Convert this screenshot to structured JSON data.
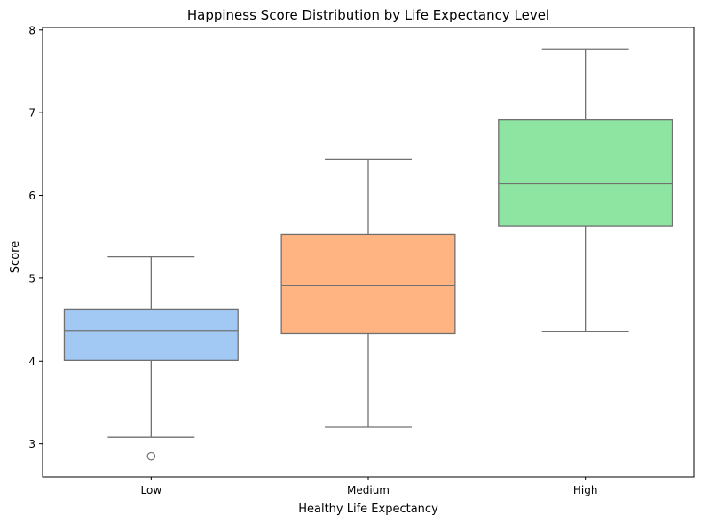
{
  "chart_data": {
    "type": "box",
    "title": "Happiness Score Distribution by Life Expectancy Level",
    "xlabel": "Healthy Life Expectancy",
    "ylabel": "Score",
    "ylim": [
      2.6,
      8.03
    ],
    "yticks": [
      3,
      4,
      5,
      6,
      7,
      8
    ],
    "grid": false,
    "categories": [
      "Low",
      "Medium",
      "High"
    ],
    "boxes": [
      {
        "category": "Low",
        "whisker_low": 3.08,
        "q1": 4.01,
        "median": 4.37,
        "q3": 4.62,
        "whisker_high": 5.26,
        "outliers": [
          2.85
        ],
        "color": "#a1c9f4"
      },
      {
        "category": "Medium",
        "whisker_low": 3.2,
        "q1": 4.33,
        "median": 4.91,
        "q3": 5.53,
        "whisker_high": 6.44,
        "outliers": [],
        "color": "#ffb482"
      },
      {
        "category": "High",
        "whisker_low": 4.36,
        "q1": 5.63,
        "median": 6.14,
        "q3": 6.92,
        "whisker_high": 7.77,
        "outliers": [],
        "color": "#8de5a1"
      }
    ],
    "line_color": "#707070"
  }
}
